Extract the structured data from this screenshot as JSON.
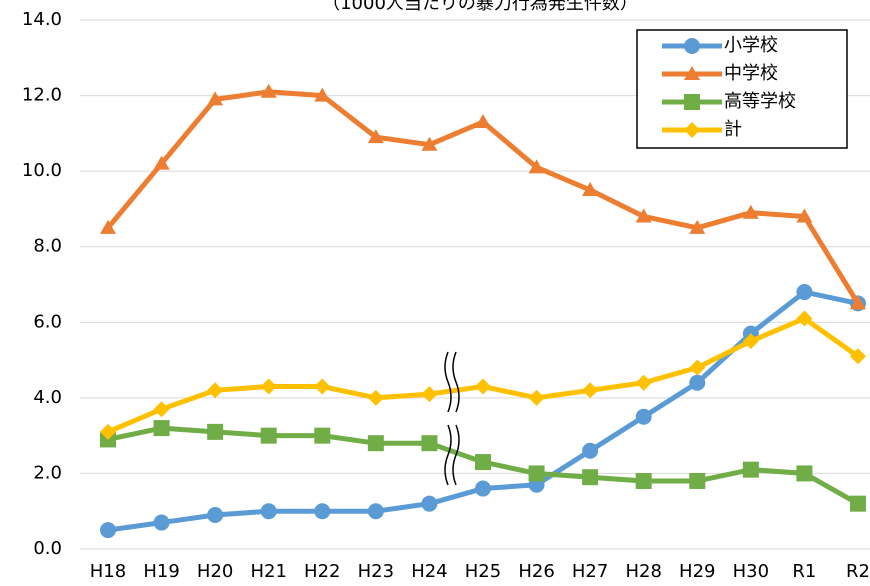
{
  "chart_data": {
    "type": "line",
    "subtitle": "（1000人当たりの暴力行為発生件数）",
    "categories": [
      "H18",
      "H19",
      "H20",
      "H21",
      "H22",
      "H23",
      "H24",
      "H25",
      "H26",
      "H27",
      "H28",
      "H29",
      "H30",
      "R1",
      "R2"
    ],
    "series": [
      {
        "name": "小学校",
        "color": "#5b9bd5",
        "marker": "circle",
        "values": [
          0.5,
          0.7,
          0.9,
          1.0,
          1.0,
          1.0,
          1.2,
          1.6,
          1.7,
          2.6,
          3.5,
          4.4,
          5.7,
          6.8,
          6.5
        ]
      },
      {
        "name": "中学校",
        "color": "#ed7d31",
        "marker": "triangle",
        "values": [
          8.5,
          10.2,
          11.9,
          12.1,
          12.0,
          10.9,
          10.7,
          11.3,
          10.1,
          9.5,
          8.8,
          8.5,
          8.9,
          8.8,
          6.5
        ]
      },
      {
        "name": "高等学校",
        "color": "#70ad47",
        "marker": "square",
        "values": [
          2.9,
          3.2,
          3.1,
          3.0,
          3.0,
          2.8,
          2.8,
          2.3,
          2.0,
          1.9,
          1.8,
          1.8,
          2.1,
          2.0,
          1.2
        ]
      },
      {
        "name": "計",
        "color": "#ffc000",
        "marker": "diamond",
        "values": [
          3.1,
          3.7,
          4.2,
          4.3,
          4.3,
          4.0,
          4.1,
          4.3,
          4.0,
          4.2,
          4.4,
          4.8,
          5.5,
          6.1,
          5.1
        ]
      }
    ],
    "ylim": [
      0,
      14
    ],
    "yticks": [
      {
        "value": 0,
        "label": "0.0"
      },
      {
        "value": 2,
        "label": "2.0"
      },
      {
        "value": 4,
        "label": "4.0"
      },
      {
        "value": 6,
        "label": "6.0"
      },
      {
        "value": 8,
        "label": "8.0"
      },
      {
        "value": 10,
        "label": "10.0"
      },
      {
        "value": 12,
        "label": "12.0"
      },
      {
        "value": 14,
        "label": "14.0"
      }
    ],
    "grid": true,
    "legend": "top-right"
  }
}
